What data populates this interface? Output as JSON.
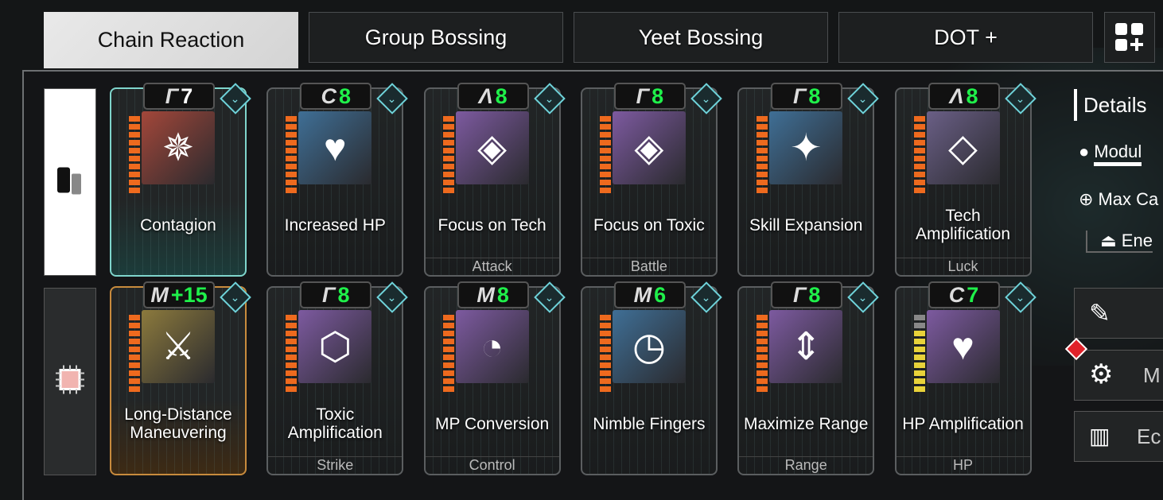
{
  "tabs": [
    "Chain Reaction",
    "Group Bossing",
    "Yeet Bossing",
    "DOT +"
  ],
  "active_tab": 0,
  "grid_button_icon": "grid-add-icon",
  "side_slots": [
    {
      "icon": "descendant-module-icon",
      "selected": true
    },
    {
      "icon": "chip-icon",
      "selected": false
    }
  ],
  "modules": [
    {
      "name": "Contagion",
      "socket": "Γ",
      "capacity": "7",
      "capacity_color": "#ffffff",
      "type": "",
      "color": "#a3473a",
      "glyph": "✵",
      "selected": "teal",
      "bars": 10
    },
    {
      "name": "Increased HP",
      "socket": "C",
      "capacity": "8",
      "type": "",
      "color": "#3f6f96",
      "glyph": "♥",
      "bars": 10
    },
    {
      "name": "Focus on Tech",
      "socket": "Λ",
      "capacity": "8",
      "type": "Attack",
      "color": "#7d5aa0",
      "glyph": "◈",
      "bars": 10
    },
    {
      "name": "Focus on Toxic",
      "socket": "Γ",
      "capacity": "8",
      "type": "Battle",
      "color": "#7d5aa0",
      "glyph": "◈",
      "bars": 10
    },
    {
      "name": "Skill Expansion",
      "socket": "Γ",
      "capacity": "8",
      "type": "",
      "color": "#3f6f96",
      "glyph": "✦",
      "bars": 10
    },
    {
      "name": "Tech Amplification",
      "socket": "Λ",
      "capacity": "8",
      "type": "Luck",
      "color": "#6a5f86",
      "glyph": "◇",
      "bars": 10
    },
    {
      "name": "Long-Distance Maneuvering",
      "socket": "M",
      "capacity": "+15",
      "type": "",
      "color": "#8c7a3d",
      "glyph": "⚔",
      "selected": "gold",
      "bars": 10
    },
    {
      "name": "Toxic Amplification",
      "socket": "Γ",
      "capacity": "8",
      "type": "Strike",
      "color": "#7d5aa0",
      "glyph": "⬡",
      "bars": 10
    },
    {
      "name": "MP Conversion",
      "socket": "M",
      "capacity": "8",
      "type": "Control",
      "color": "#7d5aa0",
      "glyph": "◔",
      "bars": 10
    },
    {
      "name": "Nimble Fingers",
      "socket": "M",
      "capacity": "6",
      "type": "",
      "color": "#3f6f96",
      "glyph": "◷",
      "bars": 10
    },
    {
      "name": "Maximize Range",
      "socket": "Γ",
      "capacity": "8",
      "type": "Range",
      "color": "#7d5aa0",
      "glyph": "⇕",
      "bars": 10
    },
    {
      "name": "HP Amplification",
      "socket": "C",
      "capacity": "7",
      "type": "HP",
      "color": "#7d5aa0",
      "glyph": "♥",
      "bars": 10,
      "bar_colors": "yellow"
    }
  ],
  "details": {
    "title": "Details",
    "module": "Modul",
    "max_capacity": "Max Ca",
    "energy": "Ene",
    "buttons": [
      {
        "icon": "edit-icon",
        "label": ""
      },
      {
        "icon": "module-settings-icon",
        "label": "M",
        "alert": true
      },
      {
        "icon": "stats-chart-icon",
        "label": "Ec"
      }
    ]
  }
}
